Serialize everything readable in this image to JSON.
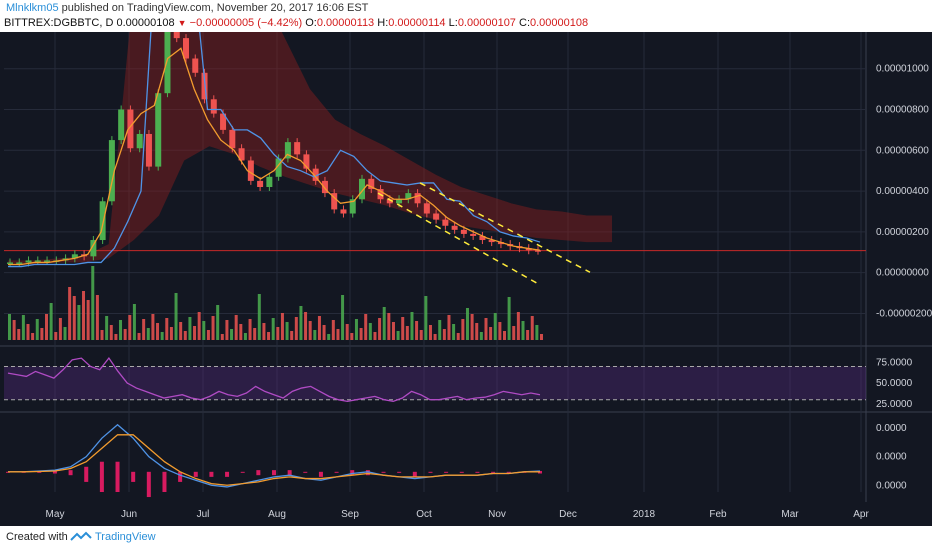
{
  "header": {
    "author": "Mlnklkm05",
    "published_text": "published on TradingView.com, November 20, 2017 16:06 EST",
    "symbol": "BITTREX:DGBBTC, D",
    "last": "0.00000108",
    "change": "−0.00000005 (−4.42%)",
    "o_label": "O:",
    "o": "0.00000113",
    "h_label": "H:",
    "h": "0.00000114",
    "l_label": "L:",
    "l": "0.00000107",
    "c_label": "C:",
    "c": "0.00000108"
  },
  "footer": {
    "created_with": "Created with",
    "brand": "TradingView"
  },
  "colors": {
    "background": "#131722",
    "grid": "#262b3a",
    "axis_text": "#d1d4dc",
    "candle_up": "#4caf50",
    "candle_down": "#ef5350",
    "kijun": "#4f93e6",
    "tenkan": "#f39c2e",
    "cloud": "#8b1e1e",
    "rsi": "#b04bc4",
    "macd": "#4f93e6",
    "signal": "#f39c2e",
    "hist": "#d81b60",
    "trendline": "#ffeb3b",
    "price_line": "#c62828"
  },
  "chart_data": {
    "type": "candlestick",
    "title": "BITTREX:DGBBTC, D",
    "x_ticks": [
      "May",
      "Jun",
      "Jul",
      "Aug",
      "Sep",
      "Oct",
      "Nov",
      "Dec",
      "2018",
      "Feb",
      "Mar",
      "Apr"
    ],
    "main_pane": {
      "y_ticks": [
        "0.00001000",
        "0.00000800",
        "0.00000600",
        "0.00000400",
        "0.00000200",
        "0.00000000",
        "-0.00000200"
      ],
      "ylim": [
        -3.4e-06,
        1.18e-05
      ],
      "price_line": 1.08e-06,
      "close_series": [
        5e-07,
        5e-07,
        6e-07,
        6e-07,
        6e-07,
        6e-07,
        7e-07,
        9e-07,
        8e-07,
        1.6e-06,
        3.5e-06,
        6.5e-06,
        8e-06,
        6.1e-06,
        6.8e-06,
        5.2e-06,
        8.8e-06,
        1.3e-05,
        1.15e-05,
        1.05e-05,
        9.8e-06,
        8.5e-06,
        7.8e-06,
        7e-06,
        6.1e-06,
        5.5e-06,
        4.5e-06,
        4.2e-06,
        4.7e-06,
        5.6e-06,
        6.4e-06,
        5.8e-06,
        5.1e-06,
        4.5e-06,
        3.9e-06,
        3.1e-06,
        2.9e-06,
        3.6e-06,
        4.6e-06,
        4.1e-06,
        3.6e-06,
        3.4e-06,
        3.6e-06,
        3.9e-06,
        3.4e-06,
        2.9e-06,
        2.6e-06,
        2.3e-06,
        2.1e-06,
        1.9e-06,
        1.8e-06,
        1.6e-06,
        1.5e-06,
        1.4e-06,
        1.3e-06,
        1.2e-06,
        1.1e-06,
        1.08e-06
      ],
      "kijun": [
        3e-07,
        3e-07,
        4e-07,
        4e-07,
        4e-07,
        4e-07,
        5e-07,
        5e-07,
        1.2e-06,
        2.5e-06,
        4e-06,
        1.45e-05,
        1.45e-05,
        1.45e-05,
        1.45e-05,
        8e-06,
        8e-06,
        7e-06,
        7e-06,
        6.6e-06,
        5.8e-06,
        5.2e-06,
        5e-06,
        4.7e-06,
        5e-06,
        6e-06,
        5.7e-06,
        5e-06,
        4.5e-06,
        4.4e-06,
        4.3e-06,
        4.4e-06,
        4.4e-06,
        3.6e-06,
        3.5e-06,
        2.8e-06,
        2.5e-06,
        2e-06,
        1.8e-06,
        1.7e-06,
        1.5e-06
      ],
      "tenkan": [
        4e-07,
        4e-07,
        5e-07,
        5e-07,
        6e-07,
        7e-07,
        9e-07,
        2e-06,
        5e-06,
        7e-06,
        7.8e-06,
        8.2e-06,
        1.05e-05,
        1.1e-05,
        9e-06,
        7.5e-06,
        6.5e-06,
        6e-06,
        5e-06,
        4.6e-06,
        5e-06,
        5.8e-06,
        5.5e-06,
        4.8e-06,
        4e-06,
        3.4e-06,
        3.5e-06,
        4.3e-06,
        4e-06,
        3.6e-06,
        3.6e-06,
        3.8e-06,
        3.3e-06,
        2.7e-06,
        2.3e-06,
        2e-06,
        1.7e-06,
        1.5e-06,
        1.3e-06,
        1.2e-06,
        1.1e-06
      ],
      "cloud_top": [
        6e-07,
        6e-07,
        7e-07,
        8e-07,
        1.4e-06,
        1.4e-05,
        1.4e-05,
        1.4e-05,
        1.4e-05,
        1.4e-05,
        1.4e-05,
        1.15e-05,
        9e-06,
        7.5e-06,
        6.8e-06,
        6.2e-06,
        5.5e-06,
        4.8e-06,
        4.2e-06,
        3.8e-06,
        3.4e-06,
        3.1e-06,
        3e-06,
        2.8e-06,
        2.8e-06
      ],
      "cloud_bottom": [
        4e-07,
        4e-07,
        5e-07,
        5e-07,
        7e-07,
        1.6e-06,
        2.8e-06,
        5.5e-06,
        6.2e-06,
        5.8e-06,
        5.2e-06,
        4.7e-06,
        4.3e-06,
        3.9e-06,
        3.6e-06,
        3.3e-06,
        2.9e-06,
        2.6e-06,
        2.3e-06,
        2.1e-06,
        1.9e-06,
        1.7e-06,
        1.6e-06,
        1.5e-06,
        1.5e-06
      ],
      "trendline_upper": [
        [
          4.4e-06,
          2e-08
        ],
        "Oct to early Dec"
      ],
      "trendline_lower": [
        [
          3.9e-06,
          -6e-07
        ],
        "Sep to Nov"
      ]
    },
    "rsi_pane": {
      "y_ticks": [
        "75.0000",
        "50.0000",
        "25.0000"
      ],
      "ylim": [
        20,
        85
      ],
      "levels": [
        70,
        30
      ],
      "values": [
        62,
        60,
        58,
        64,
        60,
        56,
        66,
        78,
        80,
        70,
        66,
        80,
        64,
        50,
        44,
        40,
        36,
        32,
        34,
        36,
        32,
        30,
        34,
        40,
        36,
        34,
        38,
        46,
        40,
        36,
        32,
        40,
        44,
        46,
        40,
        34,
        30,
        28,
        30,
        32,
        34,
        30,
        28,
        32,
        40,
        36,
        30,
        30,
        32,
        34,
        30,
        32,
        33,
        36,
        40,
        38,
        36,
        38,
        36
      ]
    },
    "macd_pane": {
      "y_ticks": [
        "0.0000",
        "0.0000",
        "0.0000"
      ],
      "ylim": [
        -1.2e-06,
        3.2e-06
      ],
      "macd": [
        0,
        0,
        5e-08,
        1e-07,
        3e-07,
        9e-07,
        2e-06,
        2.8e-06,
        2e-06,
        9e-07,
        2e-07,
        -2e-07,
        -5e-07,
        -8e-07,
        -9e-07,
        -7e-07,
        -5e-07,
        -3e-07,
        -2e-07,
        -4e-07,
        -5e-07,
        -3e-07,
        -1e-07,
        0,
        -2e-07,
        -3e-07,
        -4e-07,
        -3e-07,
        -2e-07,
        -2e-07,
        -2e-07,
        -1e-07,
        -1e-07,
        0,
        5e-08
      ],
      "signal": [
        0,
        0,
        2e-08,
        5e-08,
        2e-07,
        6e-07,
        1.4e-06,
        2.2e-06,
        2.2e-06,
        1.4e-06,
        6e-07,
        0,
        -4e-07,
        -7e-07,
        -8e-07,
        -7e-07,
        -6e-07,
        -4e-07,
        -3e-07,
        -4e-07,
        -4e-07,
        -3e-07,
        -2e-07,
        -1e-07,
        -2e-07,
        -3e-07,
        -3e-07,
        -3e-07,
        -2e-07,
        -2e-07,
        -2e-07,
        -1e-07,
        -1e-07,
        0,
        0
      ]
    }
  }
}
